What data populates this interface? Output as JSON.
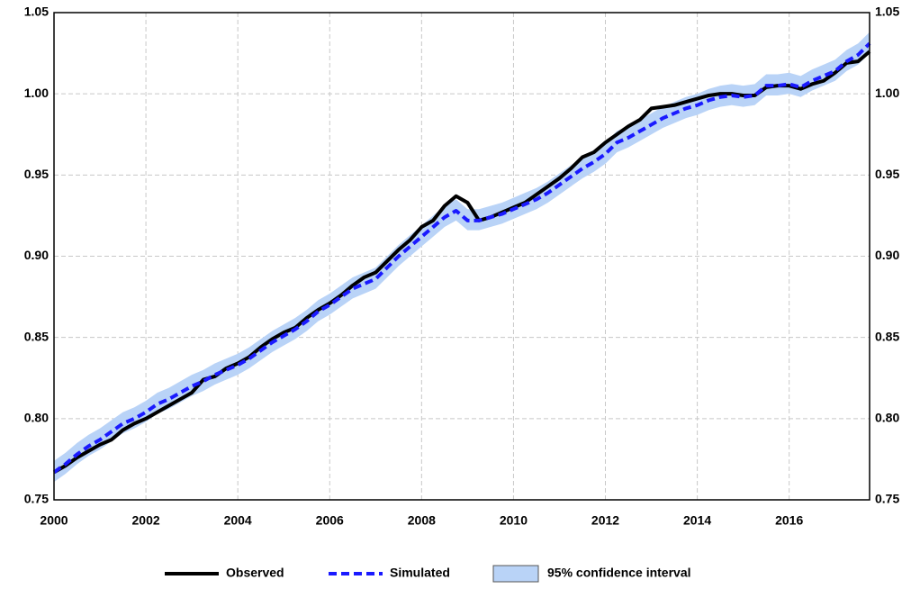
{
  "chart_data": {
    "type": "line",
    "x": [
      2000,
      2000.25,
      2000.5,
      2000.75,
      2001,
      2001.25,
      2001.5,
      2001.75,
      2002,
      2002.25,
      2002.5,
      2002.75,
      2003,
      2003.25,
      2003.5,
      2003.75,
      2004,
      2004.25,
      2004.5,
      2004.75,
      2005,
      2005.25,
      2005.5,
      2005.75,
      2006,
      2006.25,
      2006.5,
      2006.75,
      2007,
      2007.25,
      2007.5,
      2007.75,
      2008,
      2008.25,
      2008.5,
      2008.75,
      2009,
      2009.25,
      2009.5,
      2009.75,
      2010,
      2010.25,
      2010.5,
      2010.75,
      2011,
      2011.25,
      2011.5,
      2011.75,
      2012,
      2012.25,
      2012.5,
      2012.75,
      2013,
      2013.25,
      2013.5,
      2013.75,
      2014,
      2014.25,
      2014.5,
      2014.75,
      2015,
      2015.25,
      2015.5,
      2015.75,
      2016,
      2016.25,
      2016.5,
      2016.75,
      2017,
      2017.25,
      2017.5,
      2017.75
    ],
    "series": [
      {
        "name": "Observed",
        "color": "#000000",
        "dash": false,
        "values": [
          0.767,
          0.771,
          0.776,
          0.78,
          0.784,
          0.787,
          0.793,
          0.797,
          0.8,
          0.804,
          0.808,
          0.812,
          0.816,
          0.824,
          0.826,
          0.831,
          0.834,
          0.838,
          0.844,
          0.849,
          0.853,
          0.856,
          0.862,
          0.867,
          0.871,
          0.876,
          0.882,
          0.887,
          0.89,
          0.897,
          0.904,
          0.91,
          0.918,
          0.922,
          0.931,
          0.937,
          0.933,
          0.922,
          0.924,
          0.927,
          0.93,
          0.933,
          0.938,
          0.943,
          0.948,
          0.954,
          0.961,
          0.964,
          0.97,
          0.975,
          0.98,
          0.984,
          0.991,
          0.992,
          0.993,
          0.995,
          0.997,
          0.999,
          1.0,
          1.0,
          0.999,
          0.999,
          1.004,
          1.005,
          1.005,
          1.003,
          1.006,
          1.008,
          1.013,
          1.019,
          1.02,
          1.026
        ]
      },
      {
        "name": "Simulated",
        "color": "#1a1aff",
        "dash": true,
        "values": [
          0.767,
          0.772,
          0.778,
          0.783,
          0.787,
          0.792,
          0.797,
          0.8,
          0.804,
          0.809,
          0.812,
          0.816,
          0.82,
          0.823,
          0.827,
          0.83,
          0.833,
          0.837,
          0.842,
          0.847,
          0.851,
          0.855,
          0.86,
          0.866,
          0.87,
          0.875,
          0.88,
          0.883,
          0.886,
          0.893,
          0.9,
          0.906,
          0.912,
          0.918,
          0.924,
          0.928,
          0.922,
          0.922,
          0.924,
          0.926,
          0.929,
          0.932,
          0.935,
          0.939,
          0.944,
          0.949,
          0.954,
          0.958,
          0.963,
          0.97,
          0.973,
          0.977,
          0.981,
          0.985,
          0.988,
          0.991,
          0.993,
          0.996,
          0.998,
          0.999,
          0.998,
          0.999,
          1.005,
          1.005,
          1.006,
          1.004,
          1.008,
          1.011,
          1.014,
          1.02,
          1.024,
          1.031
        ]
      }
    ],
    "band": {
      "name": "95% confidence interval",
      "color": "#b9d3f7",
      "lower": [
        0.761,
        0.766,
        0.772,
        0.777,
        0.781,
        0.786,
        0.791,
        0.794,
        0.798,
        0.803,
        0.806,
        0.81,
        0.814,
        0.817,
        0.821,
        0.824,
        0.827,
        0.831,
        0.836,
        0.841,
        0.845,
        0.849,
        0.854,
        0.86,
        0.864,
        0.869,
        0.874,
        0.877,
        0.88,
        0.887,
        0.894,
        0.9,
        0.906,
        0.912,
        0.918,
        0.922,
        0.916,
        0.916,
        0.918,
        0.92,
        0.923,
        0.926,
        0.929,
        0.933,
        0.938,
        0.943,
        0.948,
        0.952,
        0.957,
        0.964,
        0.967,
        0.971,
        0.975,
        0.979,
        0.982,
        0.985,
        0.987,
        0.99,
        0.992,
        0.993,
        0.992,
        0.993,
        0.999,
        0.999,
        1.0,
        0.998,
        1.002,
        1.005,
        1.008,
        1.014,
        1.018,
        1.025
      ],
      "upper": [
        0.774,
        0.779,
        0.785,
        0.79,
        0.794,
        0.799,
        0.804,
        0.807,
        0.811,
        0.816,
        0.819,
        0.823,
        0.827,
        0.83,
        0.834,
        0.837,
        0.84,
        0.844,
        0.849,
        0.854,
        0.858,
        0.862,
        0.867,
        0.873,
        0.877,
        0.882,
        0.887,
        0.89,
        0.893,
        0.9,
        0.907,
        0.913,
        0.919,
        0.925,
        0.931,
        0.935,
        0.929,
        0.929,
        0.931,
        0.933,
        0.936,
        0.939,
        0.942,
        0.946,
        0.951,
        0.956,
        0.961,
        0.965,
        0.97,
        0.977,
        0.98,
        0.984,
        0.988,
        0.992,
        0.995,
        0.998,
        1.0,
        1.003,
        1.005,
        1.006,
        1.005,
        1.006,
        1.012,
        1.012,
        1.013,
        1.011,
        1.015,
        1.018,
        1.021,
        1.027,
        1.031,
        1.038
      ]
    },
    "xlim": [
      2000,
      2017.75
    ],
    "xticks": [
      2000,
      2002,
      2004,
      2006,
      2008,
      2010,
      2012,
      2014,
      2016
    ],
    "ylim": [
      0.75,
      1.05
    ],
    "yticks": [
      0.75,
      {
        "value": 0.8,
        "label": "0.80"
      },
      0.85,
      {
        "value": 0.9,
        "label": "0.90"
      },
      0.95,
      {
        "value": 1.0,
        "label": "1.00"
      },
      1.05
    ],
    "grid": true,
    "legend": "bottom"
  }
}
